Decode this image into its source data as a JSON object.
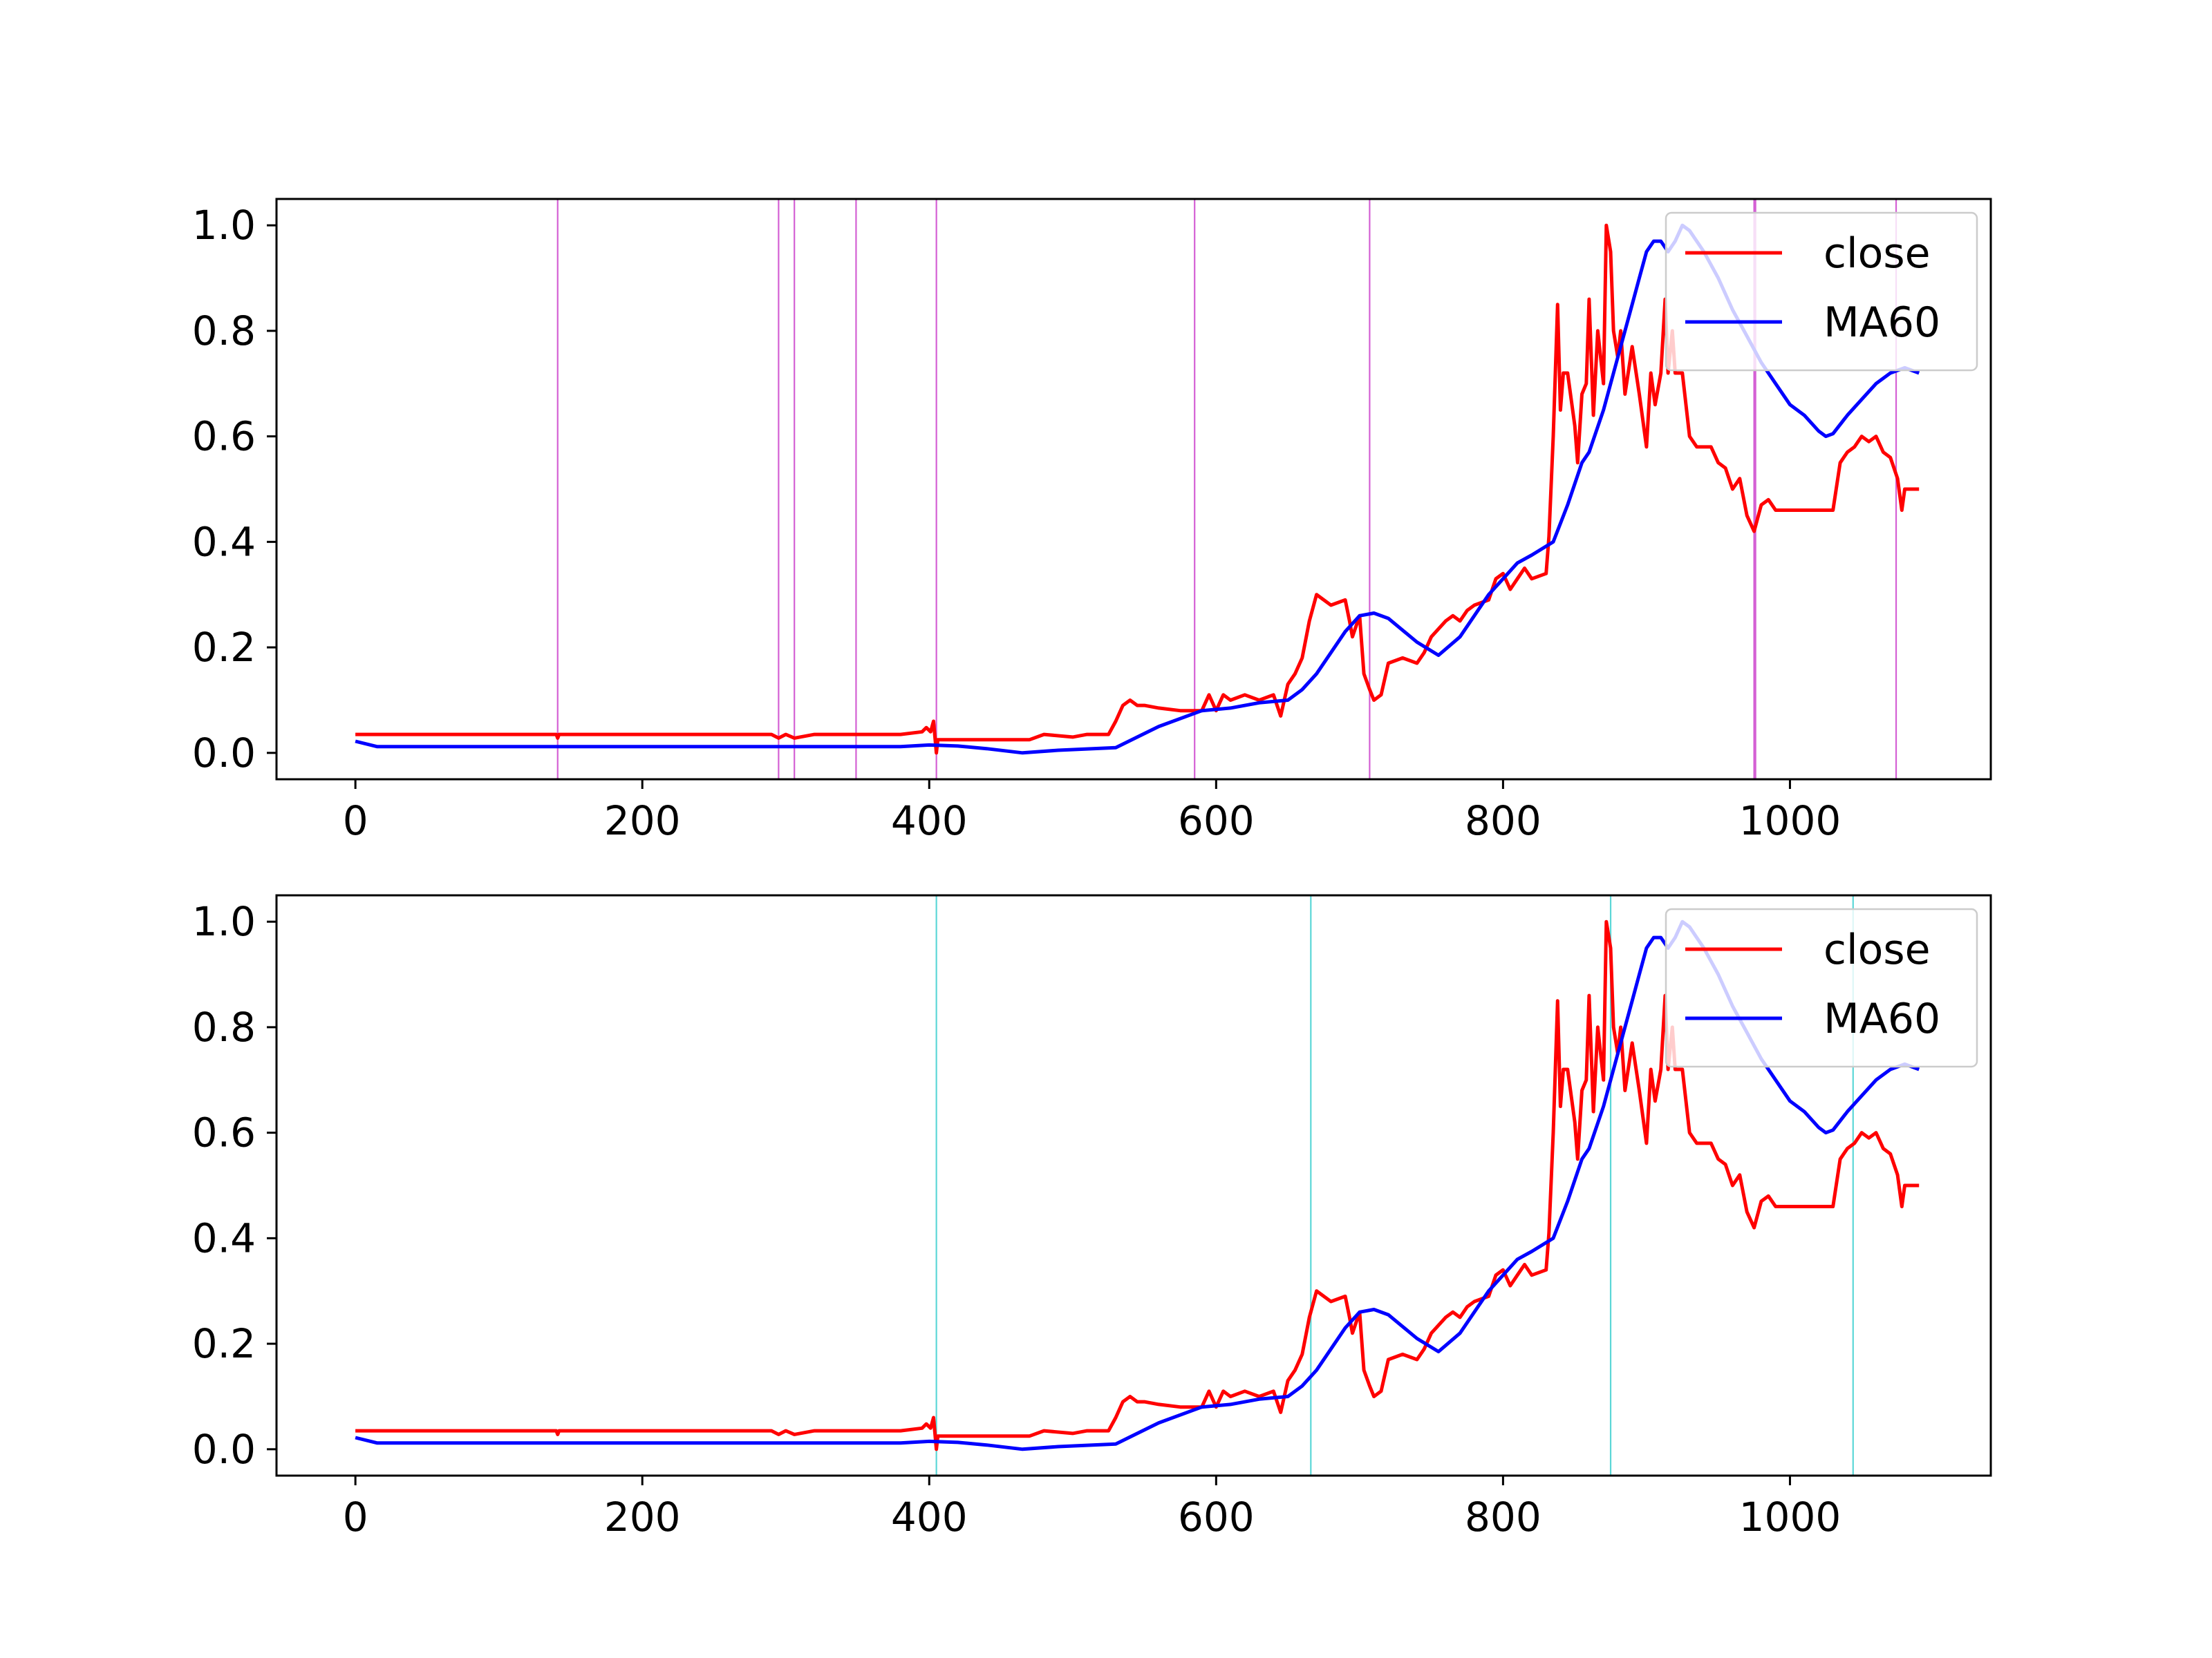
{
  "chart_data": [
    {
      "type": "line",
      "title": "",
      "xlabel": "",
      "ylabel": "",
      "xlim": [
        -55,
        1140
      ],
      "ylim": [
        -0.05,
        1.05
      ],
      "xticks": [
        "0",
        "200",
        "400",
        "600",
        "800",
        "1000"
      ],
      "yticks": [
        "0.0",
        "0.2",
        "0.4",
        "0.6",
        "0.8",
        "1.0"
      ],
      "grid": false,
      "legend_position": "upper right",
      "vlines": {
        "color": "#cc44cc",
        "x": [
          141,
          295,
          306,
          349,
          405,
          585,
          707,
          975,
          976,
          1074
        ]
      },
      "series": [
        {
          "name": "close",
          "color": "#ff0000",
          "x": [
            0,
            140,
            141,
            142,
            290,
            295,
            300,
            306,
            320,
            349,
            380,
            395,
            398,
            401,
            403,
            405,
            406,
            408,
            450,
            470,
            480,
            500,
            510,
            525,
            530,
            535,
            540,
            545,
            550,
            560,
            575,
            590,
            595,
            600,
            605,
            610,
            620,
            630,
            640,
            645,
            650,
            655,
            660,
            665,
            670,
            680,
            690,
            693,
            695,
            700,
            703,
            707,
            710,
            715,
            720,
            730,
            740,
            745,
            750,
            760,
            765,
            770,
            775,
            780,
            790,
            795,
            800,
            805,
            810,
            815,
            820,
            830,
            832,
            835,
            838,
            840,
            842,
            845,
            850,
            852,
            855,
            858,
            860,
            863,
            866,
            870,
            872,
            875,
            877,
            880,
            882,
            885,
            890,
            895,
            900,
            903,
            906,
            910,
            913,
            915,
            918,
            920,
            925,
            930,
            935,
            940,
            945,
            950,
            955,
            960,
            965,
            970,
            975,
            980,
            985,
            990,
            1000,
            1020,
            1030,
            1035,
            1040,
            1045,
            1050,
            1055,
            1060,
            1065,
            1070,
            1075,
            1078,
            1080,
            1090
          ],
          "values": [
            0.035,
            0.035,
            0.028,
            0.035,
            0.035,
            0.028,
            0.035,
            0.028,
            0.035,
            0.035,
            0.035,
            0.04,
            0.048,
            0.04,
            0.06,
            0.0,
            0.025,
            0.025,
            0.025,
            0.025,
            0.035,
            0.03,
            0.035,
            0.035,
            0.06,
            0.09,
            0.1,
            0.09,
            0.09,
            0.085,
            0.08,
            0.08,
            0.11,
            0.08,
            0.11,
            0.1,
            0.11,
            0.1,
            0.11,
            0.07,
            0.13,
            0.15,
            0.18,
            0.25,
            0.3,
            0.28,
            0.29,
            0.25,
            0.22,
            0.26,
            0.15,
            0.12,
            0.1,
            0.11,
            0.17,
            0.18,
            0.17,
            0.19,
            0.22,
            0.25,
            0.26,
            0.25,
            0.27,
            0.28,
            0.29,
            0.33,
            0.34,
            0.31,
            0.33,
            0.35,
            0.33,
            0.34,
            0.41,
            0.6,
            0.85,
            0.65,
            0.72,
            0.72,
            0.62,
            0.55,
            0.68,
            0.7,
            0.86,
            0.64,
            0.8,
            0.7,
            1.0,
            0.95,
            0.8,
            0.75,
            0.8,
            0.68,
            0.77,
            0.68,
            0.58,
            0.72,
            0.66,
            0.72,
            0.86,
            0.72,
            0.8,
            0.72,
            0.72,
            0.6,
            0.58,
            0.58,
            0.58,
            0.55,
            0.54,
            0.5,
            0.52,
            0.45,
            0.42,
            0.47,
            0.48,
            0.46,
            0.46,
            0.46,
            0.46,
            0.55,
            0.57,
            0.58,
            0.6,
            0.59,
            0.6,
            0.57,
            0.56,
            0.52,
            0.46,
            0.5,
            0.5
          ]
        },
        {
          "name": "MA60",
          "color": "#0000ff",
          "x": [
            0,
            15,
            100,
            300,
            380,
            400,
            420,
            440,
            465,
            490,
            530,
            560,
            590,
            610,
            630,
            650,
            660,
            670,
            680,
            690,
            700,
            710,
            720,
            740,
            755,
            770,
            790,
            800,
            810,
            820,
            835,
            845,
            855,
            860,
            870,
            880,
            890,
            895,
            900,
            905,
            910,
            915,
            920,
            925,
            930,
            940,
            950,
            960,
            970,
            980,
            990,
            1000,
            1010,
            1020,
            1025,
            1030,
            1040,
            1050,
            1060,
            1070,
            1080,
            1090
          ],
          "values": [
            0.022,
            0.012,
            0.012,
            0.012,
            0.012,
            0.015,
            0.013,
            0.008,
            0.0,
            0.005,
            0.01,
            0.05,
            0.08,
            0.085,
            0.095,
            0.1,
            0.12,
            0.15,
            0.19,
            0.23,
            0.26,
            0.265,
            0.255,
            0.21,
            0.185,
            0.22,
            0.3,
            0.33,
            0.36,
            0.375,
            0.4,
            0.47,
            0.55,
            0.57,
            0.65,
            0.75,
            0.85,
            0.9,
            0.95,
            0.97,
            0.97,
            0.95,
            0.97,
            1.0,
            0.99,
            0.95,
            0.9,
            0.84,
            0.79,
            0.74,
            0.7,
            0.66,
            0.64,
            0.61,
            0.6,
            0.605,
            0.64,
            0.67,
            0.7,
            0.72,
            0.73,
            0.72
          ]
        }
      ]
    },
    {
      "type": "line",
      "title": "",
      "xlabel": "",
      "ylabel": "",
      "xlim": [
        -55,
        1140
      ],
      "ylim": [
        -0.05,
        1.05
      ],
      "xticks": [
        "0",
        "200",
        "400",
        "600",
        "800",
        "1000"
      ],
      "yticks": [
        "0.0",
        "0.2",
        "0.4",
        "0.6",
        "0.8",
        "1.0"
      ],
      "grid": false,
      "legend_position": "upper right",
      "vlines": {
        "color": "#40d0d0",
        "x": [
          405,
          666,
          875,
          1044
        ]
      },
      "series": [
        {
          "name": "close",
          "color": "#ff0000",
          "x": [
            0,
            140,
            141,
            142,
            290,
            295,
            300,
            306,
            320,
            349,
            380,
            395,
            398,
            401,
            403,
            405,
            406,
            408,
            450,
            470,
            480,
            500,
            510,
            525,
            530,
            535,
            540,
            545,
            550,
            560,
            575,
            590,
            595,
            600,
            605,
            610,
            620,
            630,
            640,
            645,
            650,
            655,
            660,
            665,
            670,
            680,
            690,
            693,
            695,
            700,
            703,
            707,
            710,
            715,
            720,
            730,
            740,
            745,
            750,
            760,
            765,
            770,
            775,
            780,
            790,
            795,
            800,
            805,
            810,
            815,
            820,
            830,
            832,
            835,
            838,
            840,
            842,
            845,
            850,
            852,
            855,
            858,
            860,
            863,
            866,
            870,
            872,
            875,
            877,
            880,
            882,
            885,
            890,
            895,
            900,
            903,
            906,
            910,
            913,
            915,
            918,
            920,
            925,
            930,
            935,
            940,
            945,
            950,
            955,
            960,
            965,
            970,
            975,
            980,
            985,
            990,
            1000,
            1020,
            1030,
            1035,
            1040,
            1045,
            1050,
            1055,
            1060,
            1065,
            1070,
            1075,
            1078,
            1080,
            1090
          ],
          "values": [
            0.035,
            0.035,
            0.028,
            0.035,
            0.035,
            0.028,
            0.035,
            0.028,
            0.035,
            0.035,
            0.035,
            0.04,
            0.048,
            0.04,
            0.06,
            0.0,
            0.025,
            0.025,
            0.025,
            0.025,
            0.035,
            0.03,
            0.035,
            0.035,
            0.06,
            0.09,
            0.1,
            0.09,
            0.09,
            0.085,
            0.08,
            0.08,
            0.11,
            0.08,
            0.11,
            0.1,
            0.11,
            0.1,
            0.11,
            0.07,
            0.13,
            0.15,
            0.18,
            0.25,
            0.3,
            0.28,
            0.29,
            0.25,
            0.22,
            0.26,
            0.15,
            0.12,
            0.1,
            0.11,
            0.17,
            0.18,
            0.17,
            0.19,
            0.22,
            0.25,
            0.26,
            0.25,
            0.27,
            0.28,
            0.29,
            0.33,
            0.34,
            0.31,
            0.33,
            0.35,
            0.33,
            0.34,
            0.41,
            0.6,
            0.85,
            0.65,
            0.72,
            0.72,
            0.62,
            0.55,
            0.68,
            0.7,
            0.86,
            0.64,
            0.8,
            0.7,
            1.0,
            0.95,
            0.8,
            0.75,
            0.8,
            0.68,
            0.77,
            0.68,
            0.58,
            0.72,
            0.66,
            0.72,
            0.86,
            0.72,
            0.8,
            0.72,
            0.72,
            0.6,
            0.58,
            0.58,
            0.58,
            0.55,
            0.54,
            0.5,
            0.52,
            0.45,
            0.42,
            0.47,
            0.48,
            0.46,
            0.46,
            0.46,
            0.46,
            0.55,
            0.57,
            0.58,
            0.6,
            0.59,
            0.6,
            0.57,
            0.56,
            0.52,
            0.46,
            0.5,
            0.5
          ]
        },
        {
          "name": "MA60",
          "color": "#0000ff",
          "x": [
            0,
            15,
            100,
            300,
            380,
            400,
            420,
            440,
            465,
            490,
            530,
            560,
            590,
            610,
            630,
            650,
            660,
            670,
            680,
            690,
            700,
            710,
            720,
            740,
            755,
            770,
            790,
            800,
            810,
            820,
            835,
            845,
            855,
            860,
            870,
            880,
            890,
            895,
            900,
            905,
            910,
            915,
            920,
            925,
            930,
            940,
            950,
            960,
            970,
            980,
            990,
            1000,
            1010,
            1020,
            1025,
            1030,
            1040,
            1050,
            1060,
            1070,
            1080,
            1090
          ],
          "values": [
            0.022,
            0.012,
            0.012,
            0.012,
            0.012,
            0.015,
            0.013,
            0.008,
            0.0,
            0.005,
            0.01,
            0.05,
            0.08,
            0.085,
            0.095,
            0.1,
            0.12,
            0.15,
            0.19,
            0.23,
            0.26,
            0.265,
            0.255,
            0.21,
            0.185,
            0.22,
            0.3,
            0.33,
            0.36,
            0.375,
            0.4,
            0.47,
            0.55,
            0.57,
            0.65,
            0.75,
            0.85,
            0.9,
            0.95,
            0.97,
            0.97,
            0.95,
            0.97,
            1.0,
            0.99,
            0.95,
            0.9,
            0.84,
            0.79,
            0.74,
            0.7,
            0.66,
            0.64,
            0.61,
            0.6,
            0.605,
            0.64,
            0.67,
            0.7,
            0.72,
            0.73,
            0.72
          ]
        }
      ]
    }
  ]
}
